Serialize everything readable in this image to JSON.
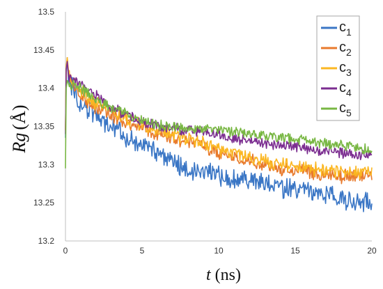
{
  "chart_data": {
    "type": "line",
    "xlabel_var": "t",
    "xlabel_unit": "(ns)",
    "ylabel_var": "Rg",
    "ylabel_unit": "(Å)",
    "xlim": [
      0,
      20
    ],
    "ylim": [
      13.2,
      13.5
    ],
    "x_ticks": [
      0,
      5,
      10,
      15,
      20
    ],
    "y_ticks": [
      13.2,
      13.25,
      13.3,
      13.35,
      13.4,
      13.45,
      13.5
    ],
    "y_tick_labels": [
      "13.2",
      "13.25",
      "13.3",
      "13.35",
      "13.4",
      "13.45",
      "13.5"
    ],
    "grid": false,
    "legend_position": "top-right",
    "series": [
      {
        "name": "c",
        "sub": "1",
        "color": "#3a76c5",
        "start": [
          [
            0.0,
            13.335
          ],
          [
            0.05,
            13.42
          ],
          [
            0.12,
            13.44
          ]
        ],
        "anchors": [
          [
            0.2,
            13.41
          ],
          [
            1,
            13.38
          ],
          [
            2,
            13.365
          ],
          [
            3,
            13.35
          ],
          [
            4,
            13.335
          ],
          [
            5,
            13.325
          ],
          [
            6,
            13.315
          ],
          [
            7,
            13.305
          ],
          [
            8,
            13.295
          ],
          [
            10,
            13.285
          ],
          [
            12,
            13.28
          ],
          [
            14,
            13.27
          ],
          [
            16,
            13.265
          ],
          [
            18,
            13.255
          ],
          [
            20,
            13.25
          ]
        ],
        "noise": 0.012
      },
      {
        "name": "c",
        "sub": "2",
        "color": "#e87a2c",
        "start": [
          [
            0.0,
            13.345
          ],
          [
            0.05,
            13.425
          ],
          [
            0.12,
            13.44
          ]
        ],
        "anchors": [
          [
            0.2,
            13.415
          ],
          [
            1,
            13.39
          ],
          [
            2,
            13.375
          ],
          [
            3,
            13.365
          ],
          [
            4,
            13.355
          ],
          [
            5,
            13.347
          ],
          [
            6,
            13.34
          ],
          [
            8,
            13.33
          ],
          [
            10,
            13.315
          ],
          [
            12,
            13.305
          ],
          [
            14,
            13.295
          ],
          [
            16,
            13.29
          ],
          [
            18,
            13.285
          ],
          [
            20,
            13.285
          ]
        ],
        "noise": 0.008
      },
      {
        "name": "c",
        "sub": "3",
        "color": "#fbb722",
        "start": [
          [
            0.0,
            13.345
          ],
          [
            0.05,
            13.43
          ],
          [
            0.12,
            13.44
          ]
        ],
        "anchors": [
          [
            0.2,
            13.42
          ],
          [
            1,
            13.395
          ],
          [
            2,
            13.38
          ],
          [
            3,
            13.37
          ],
          [
            4,
            13.36
          ],
          [
            5,
            13.352
          ],
          [
            6,
            13.345
          ],
          [
            8,
            13.335
          ],
          [
            10,
            13.32
          ],
          [
            12,
            13.31
          ],
          [
            14,
            13.3
          ],
          [
            16,
            13.295
          ],
          [
            18,
            13.29
          ],
          [
            20,
            13.29
          ]
        ],
        "noise": 0.008
      },
      {
        "name": "c",
        "sub": "4",
        "color": "#7b2d90",
        "start": [
          [
            0.0,
            13.34
          ],
          [
            0.05,
            13.425
          ],
          [
            0.12,
            13.435
          ]
        ],
        "anchors": [
          [
            0.2,
            13.415
          ],
          [
            1,
            13.405
          ],
          [
            2,
            13.39
          ],
          [
            3,
            13.375
          ],
          [
            4,
            13.365
          ],
          [
            5,
            13.357
          ],
          [
            6,
            13.35
          ],
          [
            8,
            13.345
          ],
          [
            10,
            13.34
          ],
          [
            12,
            13.33
          ],
          [
            14,
            13.325
          ],
          [
            16,
            13.32
          ],
          [
            18,
            13.315
          ],
          [
            20,
            13.312
          ]
        ],
        "noise": 0.006
      },
      {
        "name": "c",
        "sub": "5",
        "color": "#78b743",
        "start": [
          [
            0.0,
            13.295
          ],
          [
            0.05,
            13.4
          ],
          [
            0.12,
            13.41
          ]
        ],
        "anchors": [
          [
            0.2,
            13.405
          ],
          [
            1,
            13.4
          ],
          [
            2,
            13.385
          ],
          [
            3,
            13.375
          ],
          [
            4,
            13.365
          ],
          [
            5,
            13.357
          ],
          [
            6,
            13.352
          ],
          [
            8,
            13.348
          ],
          [
            10,
            13.345
          ],
          [
            12,
            13.34
          ],
          [
            14,
            13.335
          ],
          [
            16,
            13.33
          ],
          [
            18,
            13.325
          ],
          [
            20,
            13.32
          ]
        ],
        "noise": 0.006
      }
    ]
  }
}
